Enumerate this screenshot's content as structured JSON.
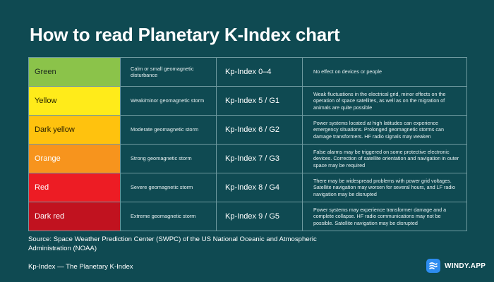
{
  "title": "How to read Planetary K-Index chart",
  "rows": [
    {
      "color_name": "Green",
      "swatch": "#8bc34a",
      "text_color": "#1e2a1e",
      "description": "Calm or small geomagnetic disturbance",
      "kp": "Kp-Index 0–4",
      "effect": "No effect on devices or people"
    },
    {
      "color_name": "Yellow",
      "swatch": "#ffeb1a",
      "text_color": "#2a2600",
      "description": "Weak/minor geomagnetic storm",
      "kp": "Kp-Index 5 / G1",
      "effect": "Weak fluctuations in the electrical grid, minor effects on the operation of space satellites, as well as on the migration of animals are quite possible"
    },
    {
      "color_name": "Dark yellow",
      "swatch": "#ffc20e",
      "text_color": "#2a2000",
      "description": "Moderate geomagnetic storm",
      "kp": "Kp-Index 6 / G2",
      "effect": "Power systems located at high latitudes can experience emergency situations. Prolonged geomagnetic storms can damage transformers. HF radio signals may weaken"
    },
    {
      "color_name": "Orange",
      "swatch": "#f7941d",
      "text_color": "#ffffff",
      "description": "Strong geomagnetic storm",
      "kp": "Kp-Index 7 / G3",
      "effect": "False alarms may be triggered on some protective electronic devices. Correction of satellite orientation and navigation in outer space may be required"
    },
    {
      "color_name": "Red",
      "swatch": "#ed1c24",
      "text_color": "#ffffff",
      "description": "Severe geomagnetic storm",
      "kp": "Kp-Index 8 / G4",
      "effect": "There may be widespread problems with power grid voltages. Satellite navigation may worsen for several hours, and LF radio navigation may be disrupted"
    },
    {
      "color_name": "Dark red",
      "swatch": "#c1121f",
      "text_color": "#ffffff",
      "description": "Extreme geomagnetic storm",
      "kp": "Kp-Index 9 / G5",
      "effect": "Power systems may experience transformer damage and a complete collapse. HF radio communications may not be possible. Satellite navigation may be disrupted"
    }
  ],
  "source": "Source:  Space Weather Prediction Center (SWPC) of the US National Oceanic and Atmospheric Administration (NOAA)",
  "footer_note": "Kp-Index — The Planetary K-Index",
  "brand": {
    "name": "WINDY.APP",
    "icon": "windy-logo-icon",
    "color": "#2d8cf0"
  },
  "colors": {
    "background": "#0f4a52",
    "grid_line": "#6f9aa0"
  }
}
